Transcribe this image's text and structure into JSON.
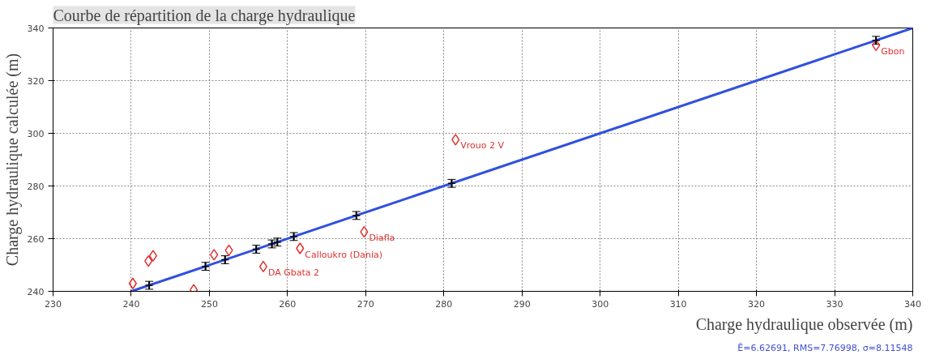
{
  "chart_data": {
    "type": "scatter",
    "title": "Courbe de répartition de la charge hydraulique",
    "xlabel": "Charge hydraulique observée (m)",
    "ylabel": "Charge hydraulique calculée (m)",
    "xlim": [
      230,
      340
    ],
    "ylim": [
      240,
      340
    ],
    "xticks": [
      230,
      240,
      250,
      260,
      270,
      280,
      290,
      300,
      310,
      320,
      330,
      340
    ],
    "yticks": [
      240,
      260,
      280,
      300,
      320,
      340
    ],
    "grid": true,
    "series": [
      {
        "type": "line",
        "color": "#3050e0",
        "marker": "none",
        "x": [
          240,
          340
        ],
        "values": [
          240,
          340
        ]
      },
      {
        "color": "#e03030",
        "marker": "diamond",
        "x": [
          240.2,
          242.2,
          242.8,
          248,
          250.6,
          252.5,
          256.9,
          261.6,
          269.8,
          281.5,
          335.3
        ],
        "values": [
          243,
          251.5,
          253.5,
          240.6,
          253.9,
          255.6,
          249.4,
          256.3,
          262.6,
          297.6,
          333.4
        ]
      },
      {
        "color": "#000000",
        "marker": "cross",
        "x": [
          242.3,
          249.5,
          252,
          256,
          258,
          258.7,
          260.8,
          268.8,
          281,
          335.3
        ],
        "values": [
          242.3,
          249.5,
          252,
          256,
          258,
          258.7,
          260.8,
          268.8,
          281,
          335.3
        ],
        "errors": [
          1.5,
          1.5,
          1.5,
          1.5,
          1.5,
          1.5,
          1.5,
          1.5,
          1.5,
          1.5
        ]
      }
    ],
    "annotations": [
      {
        "text": "Vrouo 2 V",
        "x": 281.5,
        "y": 297.6
      },
      {
        "text": "Diafla",
        "x": 269.8,
        "y": 262.6
      },
      {
        "text": "Calloukro (Dania)",
        "x": 261.6,
        "y": 256.3
      },
      {
        "text": "DA Gbata 2",
        "x": 256.9,
        "y": 249.4
      },
      {
        "text": "Gbon",
        "x": 335.3,
        "y": 333.4
      },
      "Ē=6.62691, RMS=7.76998, σ=8.11548"
    ]
  }
}
